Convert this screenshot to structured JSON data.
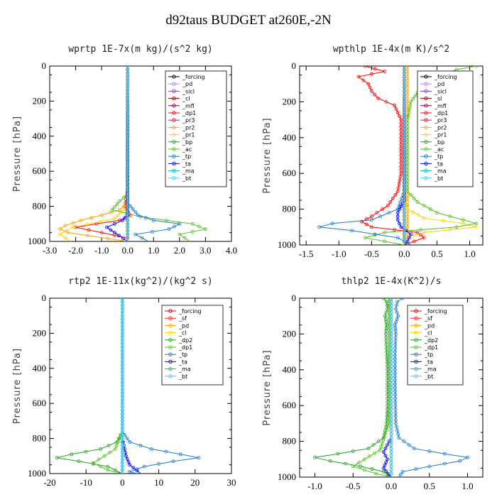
{
  "title": "d92taus  BUDGET at260E,-2N",
  "chart_data": [
    {
      "type": "line",
      "title": "wprtp  1E-7x(m kg)/(s^2 kg)",
      "ylabel": "Pressure [hPa]",
      "xlim": [
        -3.0,
        4.0
      ],
      "ylim": [
        1000,
        0
      ],
      "xticks": [
        "-3.0",
        "-2.0",
        "-1.0",
        "0.0",
        "1.0",
        "2.0",
        "3.0",
        "4.0"
      ],
      "xtick_values": [
        -3,
        -2,
        -1,
        0,
        1,
        2,
        3,
        4
      ],
      "yticks": [
        "0",
        "200",
        "400",
        "600",
        "800",
        "1000"
      ],
      "ytick_values": [
        0,
        200,
        400,
        600,
        800,
        1000
      ],
      "legend": [
        "_forcing",
        "_pd",
        "_sicl",
        "_cl",
        "_mfl",
        "_dp1",
        "_pr3",
        "_pr2",
        "_pr1",
        "_bp",
        "_ac",
        "_tp",
        "_ta",
        "_ma",
        "_bt"
      ],
      "series": [
        {
          "name": "_forcing",
          "color": "#000000",
          "p": [
            0,
            200,
            400,
            600,
            800,
            1000
          ],
          "x": [
            0,
            0,
            0,
            0,
            0,
            0
          ]
        },
        {
          "name": "_pd",
          "color": "#b48cd2",
          "p": [
            0,
            500,
            1000
          ],
          "x": [
            0,
            0,
            0
          ]
        },
        {
          "name": "_sicl",
          "color": "#8040c0",
          "p": [
            0,
            500,
            1000
          ],
          "x": [
            0,
            0,
            0
          ]
        },
        {
          "name": "_cl",
          "color": "#800000",
          "p": [
            0,
            500,
            1000
          ],
          "x": [
            0,
            0,
            0
          ]
        },
        {
          "name": "_mfl",
          "color": "#800040",
          "p": [
            0,
            500,
            1000
          ],
          "x": [
            0,
            0,
            0
          ]
        },
        {
          "name": "_dp1",
          "color": "#ff0000",
          "p": [
            0,
            700,
            800,
            850,
            880,
            900,
            920,
            950,
            980,
            1000
          ],
          "x": [
            0,
            0,
            -0.1,
            0.1,
            -0.3,
            -1.2,
            -2.0,
            -1.0,
            0.0,
            0
          ]
        },
        {
          "name": "_pr3",
          "color": "#ff0040",
          "p": [
            0,
            500,
            1000
          ],
          "x": [
            0,
            0,
            0
          ]
        },
        {
          "name": "_pr2",
          "color": "#ffa000",
          "p": [
            0,
            780,
            820,
            850,
            880,
            910,
            930,
            950,
            1000
          ],
          "x": [
            0,
            0,
            -0.3,
            -1.0,
            -1.8,
            -2.4,
            -2.6,
            -2.3,
            0
          ]
        },
        {
          "name": "_pr1",
          "color": "#ffd000",
          "p": [
            0,
            800,
            870,
            920,
            960,
            1000
          ],
          "x": [
            0,
            0,
            -0.5,
            -2.1,
            -2.6,
            -2.2
          ]
        },
        {
          "name": "_bp",
          "color": "#20a020",
          "p": [
            0,
            500,
            1000
          ],
          "x": [
            0,
            0,
            0
          ]
        },
        {
          "name": "_ac",
          "color": "#50c020",
          "p": [
            0,
            730,
            770,
            820,
            860,
            900,
            930,
            960,
            1000
          ],
          "x": [
            0,
            0,
            -0.3,
            -0.6,
            0.5,
            2.5,
            3.0,
            2.0,
            2.4
          ]
        },
        {
          "name": "_tp",
          "color": "#1e78c8",
          "p": [
            0,
            780,
            850,
            880,
            900,
            930,
            960,
            1000
          ],
          "x": [
            0,
            0,
            0.4,
            1.0,
            2.0,
            1.6,
            0.3,
            0.8
          ]
        },
        {
          "name": "_ta",
          "color": "#0000ff",
          "p": [
            0,
            850,
            880,
            920,
            950,
            1000
          ],
          "x": [
            0,
            0,
            -0.2,
            -0.8,
            -0.5,
            0
          ]
        },
        {
          "name": "_ma",
          "color": "#00b4b4",
          "p": [
            0,
            500,
            1000
          ],
          "x": [
            0,
            0,
            0
          ]
        },
        {
          "name": "_bt",
          "color": "#40c8ff",
          "p": [
            0,
            500,
            1000
          ],
          "x": [
            0,
            0,
            0
          ]
        }
      ]
    },
    {
      "type": "line",
      "title": "wpthlp  1E-4x(m K)/s^2",
      "ylabel": "Pressure [hPa]",
      "xlim": [
        -1.6,
        1.2
      ],
      "ylim": [
        1000,
        0
      ],
      "xticks": [
        "-1.5",
        "-1.0",
        "-0.5",
        "0.0",
        "0.5",
        "1.0"
      ],
      "xtick_values": [
        -1.5,
        -1.0,
        -0.5,
        0,
        0.5,
        1.0
      ],
      "yticks": [
        "0",
        "200",
        "400",
        "600",
        "800",
        "1000"
      ],
      "ytick_values": [
        0,
        200,
        400,
        600,
        800,
        1000
      ],
      "legend": [
        "_forcing",
        "_pd",
        "_sicl",
        "_sl",
        "_mfl",
        "_dp1",
        "_pr3",
        "_pr2",
        "_pr1",
        "_bp",
        "_ac",
        "_tp",
        "_ta",
        "_ma",
        "_bt"
      ],
      "series": [
        {
          "name": "_forcing",
          "color": "#000000",
          "p": [
            0,
            1000
          ],
          "x": [
            0,
            0
          ]
        },
        {
          "name": "_pd",
          "color": "#b48cd2",
          "p": [
            0,
            1000
          ],
          "x": [
            0,
            0
          ]
        },
        {
          "name": "_sicl",
          "color": "#8040c0",
          "p": [
            0,
            1000
          ],
          "x": [
            0,
            0
          ]
        },
        {
          "name": "_sl",
          "color": "#800000",
          "p": [
            0,
            1000
          ],
          "x": [
            0,
            0
          ]
        },
        {
          "name": "_mfl",
          "color": "#800040",
          "p": [
            0,
            1000
          ],
          "x": [
            0,
            0
          ]
        },
        {
          "name": "_dp1",
          "color": "#ff0000",
          "p": [
            0,
            30,
            60,
            100,
            140,
            180,
            220,
            300,
            400,
            500,
            600,
            700,
            780,
            840,
            870,
            900,
            930,
            960,
            1000
          ],
          "x": [
            -0.6,
            -0.3,
            -0.7,
            -0.55,
            -0.5,
            -0.4,
            -0.15,
            -0.05,
            -0.05,
            -0.05,
            -0.05,
            -0.1,
            -0.25,
            -0.5,
            -0.65,
            -0.5,
            0.2,
            0.3,
            0
          ]
        },
        {
          "name": "_pr3",
          "color": "#ff0040",
          "p": [
            0,
            1000
          ],
          "x": [
            0,
            0
          ]
        },
        {
          "name": "_pr2",
          "color": "#ffa000",
          "p": [
            0,
            1000
          ],
          "x": [
            0.05,
            0.05
          ]
        },
        {
          "name": "_pr1",
          "color": "#ffd000",
          "p": [
            0,
            700,
            800,
            850,
            880,
            900,
            930,
            960,
            1000
          ],
          "x": [
            0,
            0,
            0.05,
            0.3,
            0.9,
            1.1,
            0.3,
            0,
            0
          ]
        },
        {
          "name": "_bp",
          "color": "#20a020",
          "p": [
            0,
            1000
          ],
          "x": [
            0,
            0
          ]
        },
        {
          "name": "_ac",
          "color": "#50c020",
          "p": [
            0,
            20,
            60,
            100,
            150,
            200,
            300,
            400,
            500,
            600,
            700,
            760,
            820,
            860,
            880,
            900,
            930,
            960,
            1000
          ],
          "x": [
            1.1,
            0.8,
            0.5,
            0.6,
            0.2,
            0.1,
            0.05,
            0.05,
            0.05,
            0.05,
            0.05,
            0.2,
            0.5,
            0.9,
            1.1,
            0.8,
            -0.3,
            -0.6,
            0
          ]
        },
        {
          "name": "_tp",
          "color": "#1e78c8",
          "p": [
            0,
            700,
            800,
            860,
            880,
            900,
            920,
            960,
            1000
          ],
          "x": [
            0,
            0,
            -0.1,
            -0.5,
            -1.1,
            -1.3,
            -0.8,
            -0.1,
            0.1
          ]
        },
        {
          "name": "_ta",
          "color": "#0000ff",
          "p": [
            0,
            750,
            820,
            860,
            900,
            940,
            980,
            1000
          ],
          "x": [
            0,
            0,
            -0.1,
            -0.1,
            -0.05,
            0.1,
            0.05,
            0
          ]
        },
        {
          "name": "_ma",
          "color": "#00b4b4",
          "p": [
            0,
            1000
          ],
          "x": [
            0,
            0
          ]
        },
        {
          "name": "_bt",
          "color": "#40c8ff",
          "p": [
            0,
            1000
          ],
          "x": [
            0,
            0
          ]
        }
      ]
    },
    {
      "type": "line",
      "title": "rtp2  1E-11x(kg^2)/(kg^2 s)",
      "ylabel": "Pressure [hPa]",
      "xlim": [
        -20,
        30
      ],
      "ylim": [
        1000,
        0
      ],
      "xticks": [
        "-20",
        "-10",
        "0",
        "10",
        "20",
        "30"
      ],
      "xtick_values": [
        -20,
        -10,
        0,
        10,
        20,
        30
      ],
      "yticks": [
        "0",
        "200",
        "400",
        "600",
        "800",
        "1000"
      ],
      "ytick_values": [
        0,
        200,
        400,
        600,
        800,
        1000
      ],
      "legend": [
        "_forcing",
        "_sf",
        "_pd",
        "_cl",
        "_dp2",
        "_dp1",
        "_tp",
        "_ta",
        "_ma",
        "_bt"
      ],
      "series": [
        {
          "name": "_forcing",
          "color": "#cc0000",
          "p": [
            0,
            1000
          ],
          "x": [
            0,
            0
          ]
        },
        {
          "name": "_sf",
          "color": "#ff2020",
          "p": [
            0,
            1000
          ],
          "x": [
            0,
            0
          ]
        },
        {
          "name": "_pd",
          "color": "#ffa000",
          "p": [
            0,
            1000
          ],
          "x": [
            0,
            0
          ]
        },
        {
          "name": "_cl",
          "color": "#ffd000",
          "p": [
            0,
            1000
          ],
          "x": [
            0,
            0
          ]
        },
        {
          "name": "_dp2",
          "color": "#20a020",
          "p": [
            0,
            760,
            820,
            860,
            890,
            910,
            930,
            960,
            1000
          ],
          "x": [
            0,
            0,
            -1.5,
            -6,
            -14,
            -18,
            -12,
            -4,
            0
          ]
        },
        {
          "name": "_dp1",
          "color": "#50c020",
          "p": [
            0,
            760,
            860,
            900,
            940,
            980,
            1000
          ],
          "x": [
            0,
            0,
            -2,
            -5,
            -8,
            -4,
            0
          ]
        },
        {
          "name": "_tp",
          "color": "#1e78c8",
          "p": [
            0,
            760,
            820,
            860,
            890,
            910,
            930,
            960,
            990,
            1000
          ],
          "x": [
            0,
            0,
            2,
            8,
            16,
            21,
            14,
            6,
            2,
            4
          ]
        },
        {
          "name": "_ta",
          "color": "#0000ff",
          "p": [
            0,
            800,
            900,
            950,
            1000
          ],
          "x": [
            0,
            0,
            1,
            2,
            5
          ]
        },
        {
          "name": "_ma",
          "color": "#00b4b4",
          "p": [
            0,
            1000
          ],
          "x": [
            0,
            0
          ]
        },
        {
          "name": "_bt",
          "color": "#40c8ff",
          "p": [
            0,
            1000
          ],
          "x": [
            0,
            0
          ]
        }
      ]
    },
    {
      "type": "line",
      "title": "thlp2  1E-4x(K^2)/s",
      "ylabel": "Pressure [hPa]",
      "xlim": [
        -1.2,
        1.2
      ],
      "ylim": [
        1000,
        0
      ],
      "xticks": [
        "-1.0",
        "-0.5",
        "0.0",
        "0.5",
        "1.0"
      ],
      "xtick_values": [
        -1.0,
        -0.5,
        0,
        0.5,
        1.0
      ],
      "yticks": [
        "0",
        "200",
        "400",
        "600",
        "800",
        "1000"
      ],
      "ytick_values": [
        0,
        200,
        400,
        600,
        800,
        1000
      ],
      "legend": [
        "_forcing",
        "_sf",
        "_pd",
        "_cl",
        "_dp2",
        "_dp1",
        "_tp",
        "_ta",
        "_ma",
        "_bt"
      ],
      "series": [
        {
          "name": "_forcing",
          "color": "#cc0000",
          "p": [
            0,
            1000
          ],
          "x": [
            0,
            0
          ]
        },
        {
          "name": "_sf",
          "color": "#ff2020",
          "p": [
            0,
            1000
          ],
          "x": [
            0,
            0
          ]
        },
        {
          "name": "_pd",
          "color": "#ffa000",
          "p": [
            0,
            1000
          ],
          "x": [
            0,
            0
          ]
        },
        {
          "name": "_cl",
          "color": "#ffd000",
          "p": [
            0,
            1000
          ],
          "x": [
            0,
            0
          ]
        },
        {
          "name": "_dp2",
          "color": "#20a020",
          "p": [
            0,
            20,
            60,
            100,
            150,
            200,
            300,
            400,
            500,
            600,
            700,
            780,
            840,
            870,
            890,
            910,
            940,
            970,
            1000
          ],
          "x": [
            -0.1,
            -0.06,
            -0.05,
            -0.08,
            -0.06,
            -0.07,
            -0.06,
            -0.05,
            -0.05,
            -0.05,
            -0.06,
            -0.1,
            -0.3,
            -0.7,
            -1.0,
            -0.8,
            -0.4,
            -0.1,
            0
          ]
        },
        {
          "name": "_dp1",
          "color": "#50c020",
          "p": [
            0,
            300,
            700,
            850,
            900,
            940,
            980,
            1000
          ],
          "x": [
            -0.03,
            -0.03,
            -0.03,
            -0.15,
            -0.35,
            -0.5,
            -0.2,
            0
          ]
        },
        {
          "name": "_tp",
          "color": "#1e78c8",
          "p": [
            0,
            20,
            60,
            100,
            150,
            200,
            300,
            500,
            700,
            780,
            840,
            870,
            890,
            910,
            940,
            970,
            1000
          ],
          "x": [
            0.15,
            0.08,
            0.06,
            0.09,
            0.05,
            0.06,
            0.05,
            0.05,
            0.06,
            0.1,
            0.3,
            0.7,
            1.0,
            0.9,
            0.5,
            0.15,
            0.1
          ]
        },
        {
          "name": "_ta",
          "color": "#0000ff",
          "p": [
            0,
            780,
            820,
            860,
            900,
            950,
            1000
          ],
          "x": [
            0,
            0,
            -0.05,
            -0.1,
            -0.05,
            -0.1,
            0
          ]
        },
        {
          "name": "_ma",
          "color": "#00b4b4",
          "p": [
            0,
            1000
          ],
          "x": [
            0,
            0
          ]
        },
        {
          "name": "_bt",
          "color": "#40c8ff",
          "p": [
            0,
            1000
          ],
          "x": [
            0,
            0
          ]
        }
      ]
    }
  ]
}
